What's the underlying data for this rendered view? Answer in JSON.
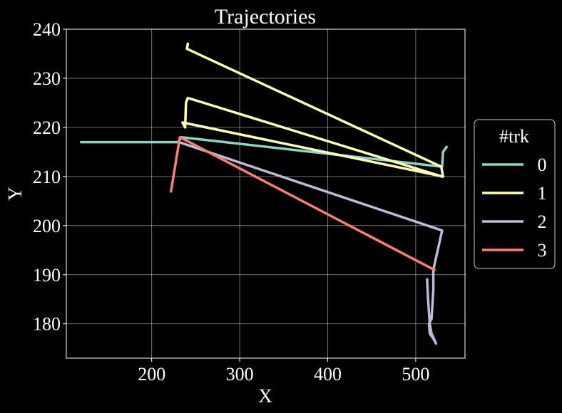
{
  "chart_data": {
    "type": "line",
    "title": "Trajectories",
    "xlabel": "X",
    "ylabel": "Y",
    "xlim": [
      103,
      556
    ],
    "ylim": [
      173,
      240
    ],
    "xticks": [
      200,
      300,
      400,
      500
    ],
    "yticks": [
      180,
      190,
      200,
      210,
      220,
      230,
      240
    ],
    "grid": true,
    "legend": {
      "title": "#trk",
      "placement": "center-right, outside the axes"
    },
    "series": [
      {
        "name": "0",
        "color": "#8dd3c7",
        "points": [
          [
            120,
            217
          ],
          [
            230,
            217
          ],
          [
            234,
            218
          ],
          [
            530,
            212
          ],
          [
            531,
            215
          ],
          [
            535,
            216
          ]
        ]
      },
      {
        "name": "1",
        "color": "#ffffb3",
        "points": [
          [
            241,
            237
          ],
          [
            240,
            236
          ],
          [
            529,
            212
          ],
          [
            531,
            210
          ],
          [
            235,
            221
          ],
          [
            238,
            220
          ],
          [
            239,
            225
          ],
          [
            241,
            226
          ],
          [
            530,
            210
          ]
        ]
      },
      {
        "name": "2",
        "color": "#bebada",
        "points": [
          [
            231,
            217
          ],
          [
            530,
            199
          ],
          [
            520,
            191
          ],
          [
            520,
            187
          ],
          [
            518,
            181
          ],
          [
            515,
            180
          ],
          [
            516,
            178
          ],
          [
            520,
            177
          ],
          [
            523,
            176
          ],
          [
            518,
            178
          ],
          [
            516,
            180
          ],
          [
            514,
            185
          ],
          [
            513,
            189
          ]
        ]
      },
      {
        "name": "3",
        "color": "#fb8072",
        "points": [
          [
            222,
            207
          ],
          [
            232,
            218
          ],
          [
            521,
            191
          ]
        ]
      }
    ]
  }
}
